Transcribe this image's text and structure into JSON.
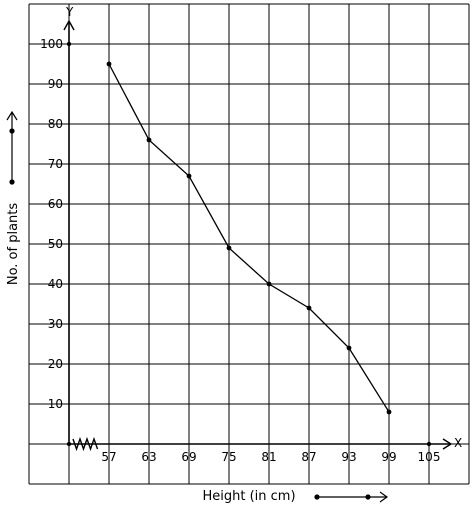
{
  "chart_data": {
    "type": "line",
    "xlabel": "Height (in cm)",
    "ylabel": "No. of plants",
    "x_axis_letter": "X",
    "y_axis_letter": "Y",
    "x": [
      57,
      63,
      69,
      75,
      81,
      87,
      93,
      99
    ],
    "y": [
      95,
      76,
      67,
      49,
      40,
      34,
      24,
      8
    ],
    "xticks": [
      57,
      63,
      69,
      75,
      81,
      87,
      93,
      99,
      105
    ],
    "yticks": [
      10,
      20,
      30,
      40,
      50,
      60,
      70,
      80,
      90,
      100
    ],
    "xlim": [
      51,
      105
    ],
    "ylim": [
      0,
      100
    ],
    "axis_break_on_x": true,
    "grid": true,
    "line_color": "#000000"
  }
}
